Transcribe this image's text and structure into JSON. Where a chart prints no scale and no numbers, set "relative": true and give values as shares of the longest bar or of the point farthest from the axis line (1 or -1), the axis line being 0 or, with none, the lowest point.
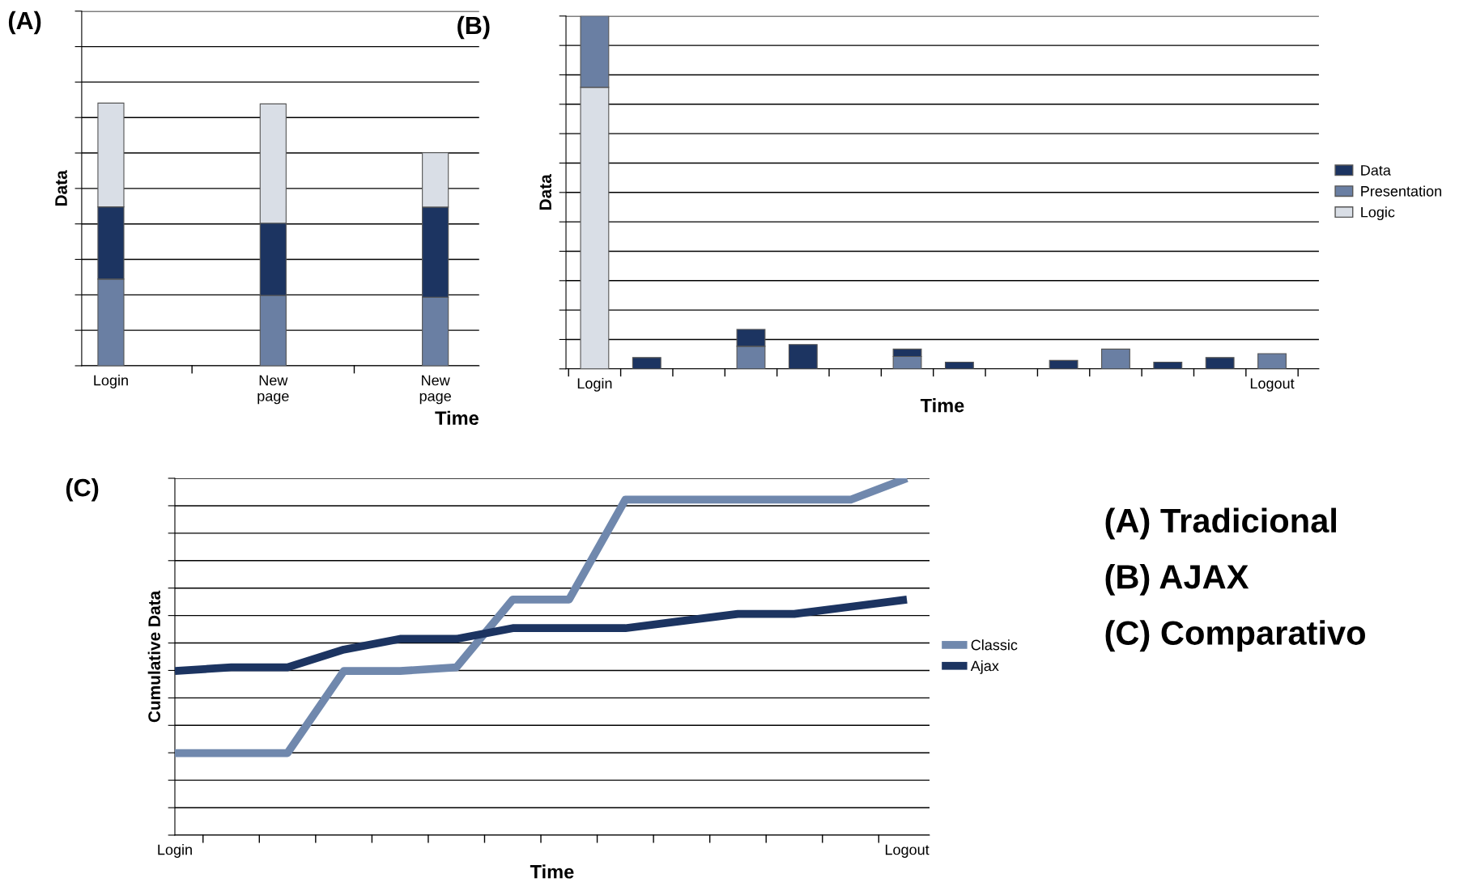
{
  "chart_data": [
    {
      "type": "bar",
      "title": "(A)",
      "xlabel": "Time",
      "ylabel": "Data",
      "relative": true,
      "stacked": true,
      "grid": "y",
      "categories": [
        "Login",
        "New\npage",
        "New\npage"
      ],
      "series": [
        {
          "color": "#6a7fa3",
          "values": [
            0.33,
            0.268,
            0.261
          ]
        },
        {
          "color": "#1c3461",
          "values": [
            0.275,
            0.275,
            0.343
          ]
        },
        {
          "color": "#d9dee6",
          "values": [
            0.395,
            0.454,
            0.207
          ]
        }
      ]
    },
    {
      "type": "bar",
      "title": "(B)",
      "xlabel": "Time",
      "ylabel": "Data",
      "relative": true,
      "stacked": true,
      "grid": "y",
      "legend": "right",
      "categories": [
        "Login",
        null,
        null,
        null,
        null,
        null,
        null,
        null,
        null,
        null,
        null,
        null,
        null,
        "Logout"
      ],
      "series": [
        {
          "name": "Logic",
          "color": "#d9dee6",
          "values": [
            0.798,
            null,
            null,
            null,
            null,
            null,
            null,
            null,
            null,
            null,
            null,
            null,
            null,
            null
          ]
        },
        {
          "name": "Presentation",
          "color": "#6a7fa3",
          "values": [
            0.202,
            null,
            null,
            0.064,
            null,
            null,
            0.035,
            null,
            null,
            null,
            0.056,
            null,
            null,
            0.043
          ]
        },
        {
          "name": "Data",
          "color": "#1c3461",
          "values": [
            null,
            0.032,
            null,
            0.048,
            0.069,
            null,
            0.021,
            0.019,
            null,
            0.024,
            null,
            0.019,
            0.032,
            null
          ]
        }
      ]
    },
    {
      "type": "line",
      "title": "(C)",
      "xlabel": "Time",
      "ylabel": "Cumulative Data",
      "relative": true,
      "grid": "y",
      "legend": "right",
      "categories": [
        "Login",
        null,
        null,
        null,
        null,
        null,
        null,
        null,
        null,
        null,
        null,
        null,
        null,
        "Logout"
      ],
      "series": [
        {
          "name": "Classic",
          "color": "#7088ad",
          "values": [
            0.23,
            0.23,
            0.23,
            0.46,
            0.46,
            0.47,
            0.66,
            0.66,
            0.94,
            0.94,
            0.94,
            0.94,
            0.94,
            1
          ]
        },
        {
          "name": "Ajax",
          "color": "#1c3461",
          "values": [
            0.46,
            0.47,
            0.47,
            0.52,
            0.55,
            0.55,
            0.58,
            0.58,
            0.58,
            0.6,
            0.62,
            0.62,
            0.64,
            0.66
          ]
        }
      ]
    },
    {
      "type": "other",
      "annotations": [
        "(A) Tradicional",
        "(B) AJAX",
        "(C) Comparativo"
      ]
    }
  ]
}
